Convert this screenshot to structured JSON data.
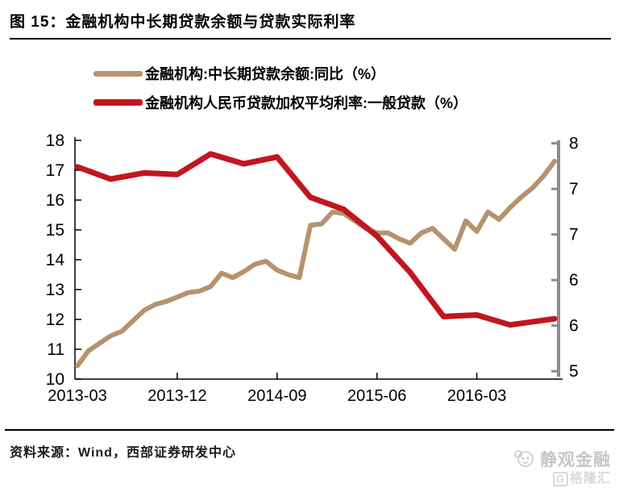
{
  "title": "图 15：金融机构中长期贷款余额与贷款实际利率",
  "source_note": "资料来源：Wind，西部证券研发中心",
  "watermark": {
    "brand": "静观金融",
    "platform_initial": "G",
    "platform": "格隆汇"
  },
  "colors": {
    "loan_balance_line": "#B6936E",
    "lending_rate_line": "#C1161F",
    "axis": "#000000",
    "right_axis": "#8C8C8C",
    "watermark": "#C6C6C6"
  },
  "chart_data": {
    "type": "line",
    "title": "金融机构中长期贷款余额与贷款实际利率",
    "grid": false,
    "legend_position": "top",
    "x_unit": "months since 2013-03",
    "x_range_months": [
      0,
      43
    ],
    "x_tick_labels": [
      "2013-03",
      "2013-12",
      "2014-09",
      "2015-06",
      "2016-03"
    ],
    "x_tick_months": [
      0,
      9,
      18,
      27,
      36
    ],
    "left_axis": {
      "min": 10,
      "max": 18,
      "ticks": [
        18,
        17,
        16,
        15,
        14,
        13,
        12,
        11,
        10
      ]
    },
    "right_axis": {
      "min": 5,
      "max": 8,
      "tick_values": [
        8,
        7.4,
        6.8,
        6.2,
        5.6,
        5
      ],
      "tick_labels": [
        "8",
        "7",
        "7",
        "6",
        "6",
        "5"
      ]
    },
    "series": [
      {
        "name": "金融机构:中长期贷款余额:同比（%）",
        "id": "loan-balance",
        "axis": "left",
        "color": "#B6936E",
        "start": "2013-03",
        "freq": "monthly",
        "x_months": [
          0,
          1,
          2,
          3,
          4,
          5,
          6,
          7,
          8,
          9,
          10,
          11,
          12,
          13,
          14,
          15,
          16,
          17,
          18,
          19,
          20,
          21,
          22,
          23,
          24,
          25,
          26,
          27,
          28,
          29,
          30,
          31,
          32,
          33,
          34,
          35,
          36,
          37,
          38,
          39,
          40,
          41,
          42,
          43
        ],
        "values": [
          10.45,
          10.95,
          11.2,
          11.45,
          11.6,
          11.95,
          12.3,
          12.5,
          12.6,
          12.75,
          12.9,
          12.95,
          13.1,
          13.55,
          13.4,
          13.6,
          13.85,
          13.95,
          13.65,
          13.5,
          13.4,
          15.15,
          15.2,
          15.6,
          15.55,
          15.3,
          15.05,
          14.9,
          14.9,
          14.7,
          14.55,
          14.9,
          15.05,
          14.7,
          14.35,
          15.3,
          14.95,
          15.6,
          15.35,
          15.75,
          16.1,
          16.4,
          16.8,
          17.3
        ]
      },
      {
        "name": "金融机构人民币贷款加权平均利率:一般贷款（%）",
        "id": "lending-rate",
        "axis": "right",
        "color": "#C1161F",
        "start": "2013-03",
        "freq": "quarterly",
        "x_months": [
          0,
          3,
          6,
          9,
          12,
          15,
          18,
          21,
          24,
          27,
          30,
          33,
          36,
          39,
          43
        ],
        "values": [
          7.69,
          7.53,
          7.61,
          7.59,
          7.86,
          7.73,
          7.82,
          7.29,
          7.13,
          6.78,
          6.3,
          5.72,
          5.74,
          5.61,
          5.69
        ]
      }
    ]
  }
}
